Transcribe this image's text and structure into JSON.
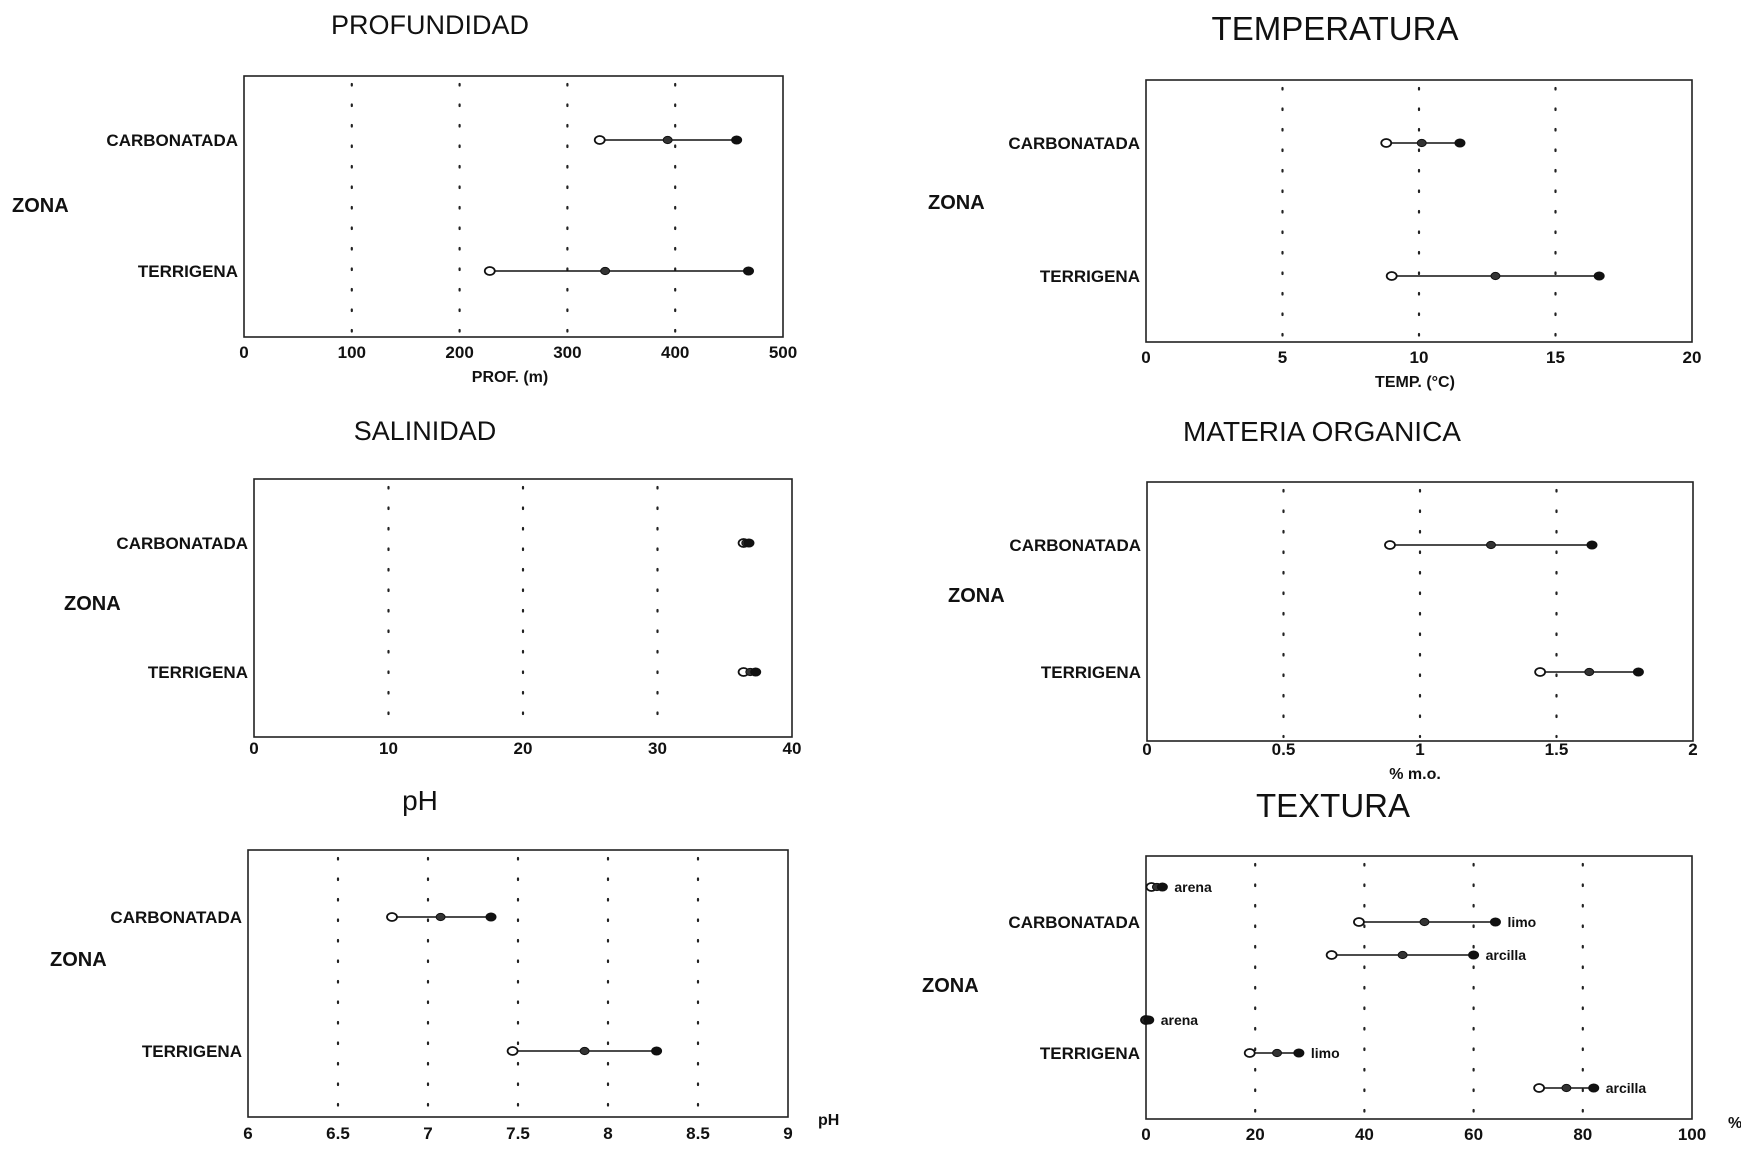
{
  "chart_data": [
    {
      "type": "range-dot",
      "title": "PROFUNDIDAD",
      "xlabel": "PROF. (m)",
      "ylabel": "ZONA",
      "xlim": [
        0,
        500
      ],
      "xticks": [
        0,
        100,
        200,
        300,
        400,
        500
      ],
      "xtick_labels": [
        "0",
        "100",
        "200",
        "300",
        "400",
        "500"
      ],
      "grid": "vertical dotted",
      "categories": [
        "CARBONATADA",
        "TERRIGENA"
      ],
      "rows": [
        {
          "category": "CARBONATADA",
          "min": 330,
          "mean": 393,
          "max": 457
        },
        {
          "category": "TERRIGENA",
          "min": 228,
          "mean": 335,
          "max": 468
        }
      ]
    },
    {
      "type": "range-dot",
      "title": "TEMPERATURA",
      "xlabel": "TEMP. (°C)",
      "ylabel": "ZONA",
      "xlim": [
        0,
        20
      ],
      "xticks": [
        0,
        5,
        10,
        15,
        20
      ],
      "xtick_labels": [
        "0",
        "5",
        "10",
        "15",
        "20"
      ],
      "grid": "vertical dotted",
      "categories": [
        "CARBONATADA",
        "TERRIGENA"
      ],
      "rows": [
        {
          "category": "CARBONATADA",
          "min": 8.8,
          "mean": 10.1,
          "max": 11.5
        },
        {
          "category": "TERRIGENA",
          "min": 9.0,
          "mean": 12.8,
          "max": 16.6
        }
      ]
    },
    {
      "type": "range-dot",
      "title": "SALINIDAD",
      "xlabel": "",
      "ylabel": "ZONA",
      "xlim": [
        0,
        40
      ],
      "xticks": [
        0,
        10,
        20,
        30,
        40
      ],
      "xtick_labels": [
        "0",
        "10",
        "20",
        "30",
        "40"
      ],
      "grid": "vertical dotted",
      "categories": [
        "CARBONATADA",
        "TERRIGENA"
      ],
      "rows": [
        {
          "category": "CARBONATADA",
          "min": 36.4,
          "mean": 36.6,
          "max": 36.8
        },
        {
          "category": "TERRIGENA",
          "min": 36.4,
          "mean": 36.9,
          "max": 37.3
        }
      ]
    },
    {
      "type": "range-dot",
      "title": "MATERIA ORGANICA",
      "xlabel": "% m.o.",
      "ylabel": "ZONA",
      "xlim": [
        0,
        2
      ],
      "xticks": [
        0,
        0.5,
        1,
        1.5,
        2
      ],
      "xtick_labels": [
        "0",
        "0.5",
        "1",
        "1.5",
        "2"
      ],
      "grid": "vertical dotted",
      "categories": [
        "CARBONATADA",
        "TERRIGENA"
      ],
      "rows": [
        {
          "category": "CARBONATADA",
          "min": 0.89,
          "mean": 1.26,
          "max": 1.63
        },
        {
          "category": "TERRIGENA",
          "min": 1.44,
          "mean": 1.62,
          "max": 1.8
        }
      ]
    },
    {
      "type": "range-dot",
      "title": "pH",
      "xlabel": "pH",
      "ylabel": "ZONA",
      "xlim": [
        6,
        9
      ],
      "xticks": [
        6,
        6.5,
        7,
        7.5,
        8,
        8.5,
        9
      ],
      "xtick_labels": [
        "6",
        "6.5",
        "7",
        "7.5",
        "8",
        "8.5",
        "9"
      ],
      "grid": "vertical dotted",
      "categories": [
        "CARBONATADA",
        "TERRIGENA"
      ],
      "rows": [
        {
          "category": "CARBONATADA",
          "min": 6.8,
          "mean": 7.07,
          "max": 7.35
        },
        {
          "category": "TERRIGENA",
          "min": 7.47,
          "mean": 7.87,
          "max": 8.27
        }
      ]
    },
    {
      "type": "range-dot",
      "title": "TEXTURA",
      "xlabel": "%",
      "ylabel": "ZONA",
      "xlim": [
        0,
        100
      ],
      "xticks": [
        0,
        20,
        40,
        60,
        80,
        100
      ],
      "xtick_labels": [
        "0",
        "20",
        "40",
        "60",
        "80",
        "100"
      ],
      "grid": "vertical dotted",
      "categories": [
        "CARBONATADA",
        "TERRIGENA"
      ],
      "rows": [
        {
          "category": "CARBONATADA",
          "series": "arena",
          "min": 1,
          "mean": 2,
          "max": 3
        },
        {
          "category": "CARBONATADA",
          "series": "limo",
          "min": 39,
          "mean": 51,
          "max": 64
        },
        {
          "category": "CARBONATADA",
          "series": "arcilla",
          "min": 34,
          "mean": 47,
          "max": 60
        },
        {
          "category": "TERRIGENA",
          "series": "arena",
          "min": 0,
          "mean": 0,
          "max": 0.5
        },
        {
          "category": "TERRIGENA",
          "series": "limo",
          "min": 19,
          "mean": 24,
          "max": 28
        },
        {
          "category": "TERRIGENA",
          "series": "arcilla",
          "min": 72,
          "mean": 77,
          "max": 82
        }
      ]
    }
  ]
}
